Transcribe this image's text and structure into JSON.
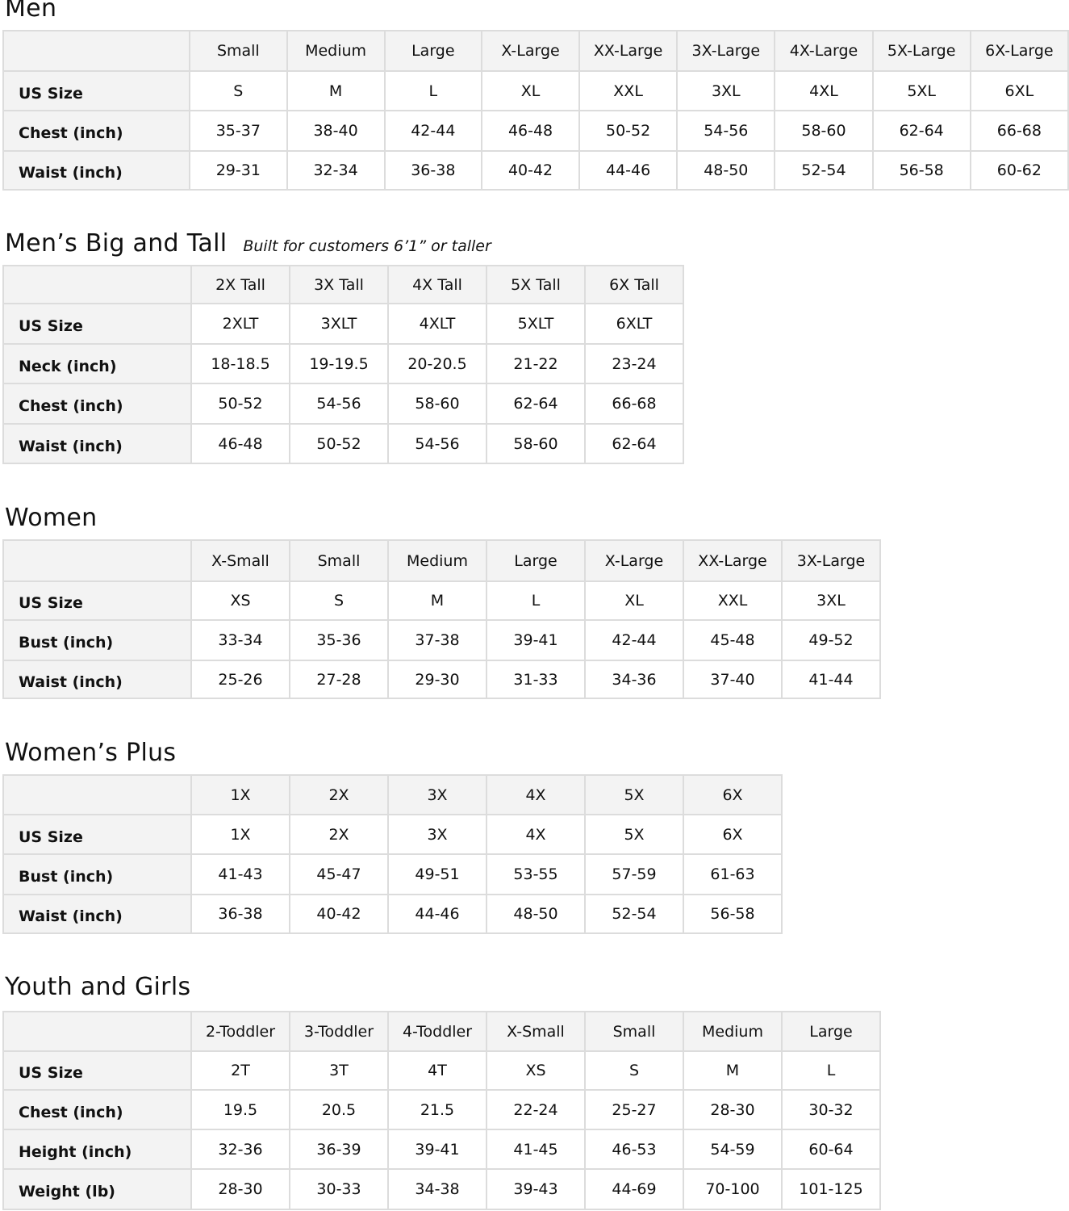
{
  "sections": [
    {
      "title": "Men",
      "subtitle": "",
      "columns": [
        "Small",
        "Medium",
        "Large",
        "X-Large",
        "XX-Large",
        "3X-Large",
        "4X-Large",
        "5X-Large",
        "6X-Large"
      ],
      "rows": [
        {
          "label": "US Size",
          "values": [
            "S",
            "M",
            "L",
            "XL",
            "XXL",
            "3XL",
            "4XL",
            "5XL",
            "6XL"
          ]
        },
        {
          "label": "Chest (inch)",
          "values": [
            "35-37",
            "38-40",
            "42-44",
            "46-48",
            "50-52",
            "54-56",
            "58-60",
            "62-64",
            "66-68"
          ]
        },
        {
          "label": "Waist (inch)",
          "values": [
            "29-31",
            "32-34",
            "36-38",
            "40-42",
            "44-46",
            "48-50",
            "52-54",
            "56-58",
            "60-62"
          ]
        }
      ]
    },
    {
      "title": "Men’s Big and Tall",
      "subtitle": "Built for customers 6’1” or taller",
      "columns": [
        "2X Tall",
        "3X Tall",
        "4X Tall",
        "5X Tall",
        "6X Tall"
      ],
      "rows": [
        {
          "label": "US Size",
          "values": [
            "2XLT",
            "3XLT",
            "4XLT",
            "5XLT",
            "6XLT"
          ]
        },
        {
          "label": "Neck (inch)",
          "values": [
            "18-18.5",
            "19-19.5",
            "20-20.5",
            "21-22",
            "23-24"
          ]
        },
        {
          "label": "Chest (inch)",
          "values": [
            "50-52",
            "54-56",
            "58-60",
            "62-64",
            "66-68"
          ]
        },
        {
          "label": "Waist (inch)",
          "values": [
            "46-48",
            "50-52",
            "54-56",
            "58-60",
            "62-64"
          ]
        }
      ]
    },
    {
      "title": "Women",
      "subtitle": "",
      "columns": [
        "X-Small",
        "Small",
        "Medium",
        "Large",
        "X-Large",
        "XX-Large",
        "3X-Large"
      ],
      "rows": [
        {
          "label": "US Size",
          "values": [
            "XS",
            "S",
            "M",
            "L",
            "XL",
            "XXL",
            "3XL"
          ]
        },
        {
          "label": "Bust (inch)",
          "values": [
            "33-34",
            "35-36",
            "37-38",
            "39-41",
            "42-44",
            "45-48",
            "49-52"
          ]
        },
        {
          "label": "Waist (inch)",
          "values": [
            "25-26",
            "27-28",
            "29-30",
            "31-33",
            "34-36",
            "37-40",
            "41-44"
          ]
        }
      ]
    },
    {
      "title": "Women’s  Plus",
      "subtitle": "",
      "columns": [
        "1X",
        "2X",
        "3X",
        "4X",
        "5X",
        "6X"
      ],
      "rows": [
        {
          "label": "US Size",
          "values": [
            "1X",
            "2X",
            "3X",
            "4X",
            "5X",
            "6X"
          ]
        },
        {
          "label": "Bust (inch)",
          "values": [
            "41-43",
            "45-47",
            "49-51",
            "53-55",
            "57-59",
            "61-63"
          ]
        },
        {
          "label": "Waist (inch)",
          "values": [
            "36-38",
            "40-42",
            "44-46",
            "48-50",
            "52-54",
            "56-58"
          ]
        }
      ]
    },
    {
      "title": "Youth and Girls",
      "subtitle": "",
      "columns": [
        "2-Toddler",
        "3-Toddler",
        "4-Toddler",
        "X-Small",
        "Small",
        "Medium",
        "Large"
      ],
      "rows": [
        {
          "label": "US Size",
          "values": [
            "2T",
            "3T",
            "4T",
            "XS",
            "S",
            "M",
            "L"
          ]
        },
        {
          "label": "Chest (inch)",
          "values": [
            "19.5",
            "20.5",
            "21.5",
            "22-24",
            "25-27",
            "28-30",
            "30-32"
          ]
        },
        {
          "label": "Height (inch)",
          "values": [
            "32-36",
            "36-39",
            "39-41",
            "41-45",
            "46-53",
            "54-59",
            "60-64"
          ]
        },
        {
          "label": "Weight (lb)",
          "values": [
            "28-30",
            "30-33",
            "34-38",
            "39-43",
            "44-69",
            "70-100",
            "101-125"
          ]
        }
      ]
    }
  ]
}
